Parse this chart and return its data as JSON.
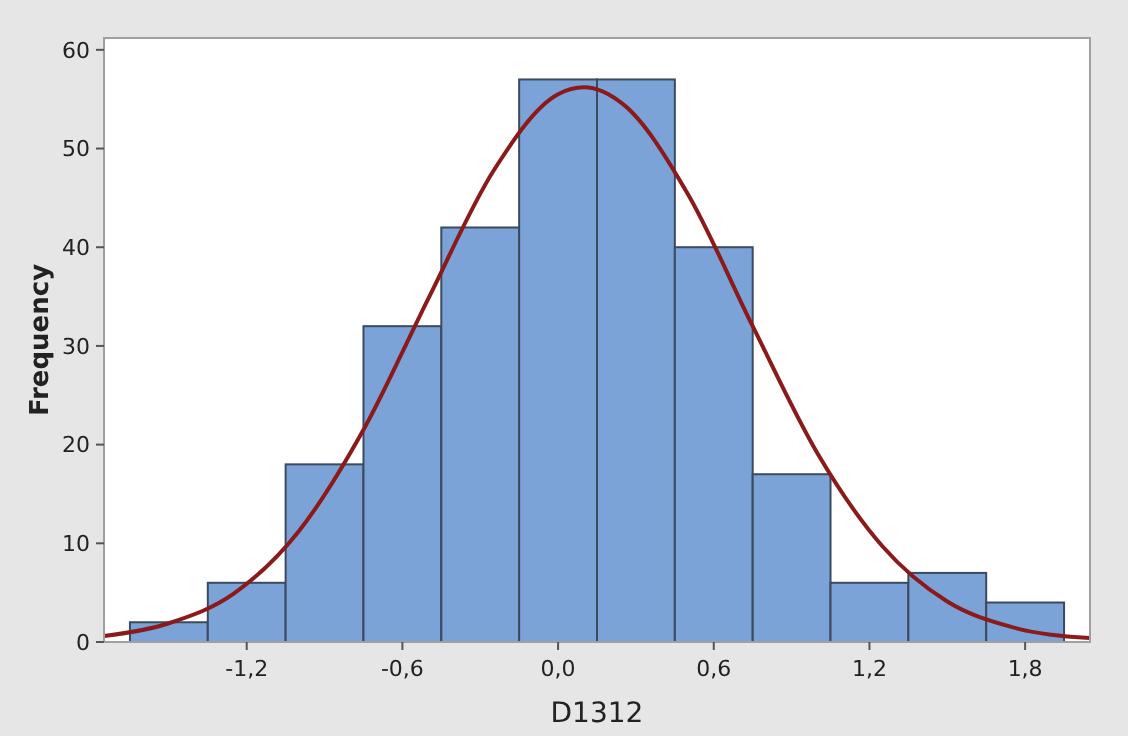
{
  "chart_data": {
    "type": "histogram",
    "xlabel": "D1312",
    "ylabel": "Frequency",
    "xlim": [
      -1.75,
      2.05
    ],
    "ylim": [
      0,
      61.2
    ],
    "xticks": [
      {
        "value": -1.2,
        "label": "-1,2"
      },
      {
        "value": -0.6,
        "label": "-0,6"
      },
      {
        "value": 0,
        "label": "0,0"
      },
      {
        "value": 0.6,
        "label": "0,6"
      },
      {
        "value": 1.2,
        "label": "1,2"
      },
      {
        "value": 1.8,
        "label": "1,8"
      }
    ],
    "yticks": [
      0,
      10,
      20,
      30,
      40,
      50,
      60
    ],
    "grid": false,
    "series": [
      {
        "color": "#7ba3d8",
        "bins": [
          -1.65,
          -1.35,
          -1.05,
          -0.75,
          -0.45,
          -0.15,
          0.15,
          0.45,
          0.75,
          1.05,
          1.35,
          1.65,
          1.95
        ],
        "values": [
          2,
          6,
          18,
          32,
          42,
          57,
          57,
          40,
          17,
          6,
          7,
          4
        ]
      },
      {
        "type": "line",
        "color": "#8b1a1a",
        "x": [
          -1.75,
          -1.5,
          -1.25,
          -1.0,
          -0.75,
          -0.5,
          -0.25,
          0,
          0.1,
          0.25,
          0.5,
          0.75,
          1.0,
          1.25,
          1.5,
          1.75,
          2.05
        ],
        "values": [
          0.6,
          1.9,
          4.9,
          11.2,
          21.5,
          34.8,
          47.7,
          55.5,
          56.2,
          54.5,
          45.4,
          32.0,
          19.1,
          9.7,
          4.1,
          1.5,
          0.4
        ]
      }
    ]
  }
}
